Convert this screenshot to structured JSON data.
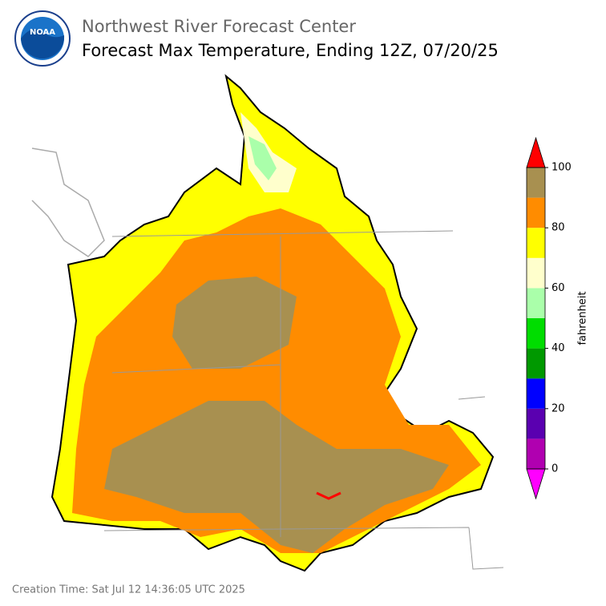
{
  "header": {
    "org": "Northwest River Forecast Center",
    "title": "Forecast Max Temperature, Ending 12Z, 07/20/25"
  },
  "colorbar": {
    "label": "fahrenheit",
    "lim": [
      0,
      100
    ],
    "ticks": [
      0,
      20,
      40,
      60,
      80,
      100
    ],
    "bounds": [
      0,
      10,
      20,
      30,
      40,
      50,
      60,
      70,
      80,
      90,
      100
    ],
    "colors": [
      "#b000b0",
      "#5a00b0",
      "#0000ff",
      "#009900",
      "#00dd00",
      "#aaffaa",
      "#ffffcc",
      "#ffff00",
      "#ff8c00",
      "#a89050"
    ],
    "under": "#ff00ff",
    "over": "#ff0000"
  },
  "footer": {
    "creation_time": "Creation Time: Sat Jul 12 14:36:05 UTC 2025"
  }
}
